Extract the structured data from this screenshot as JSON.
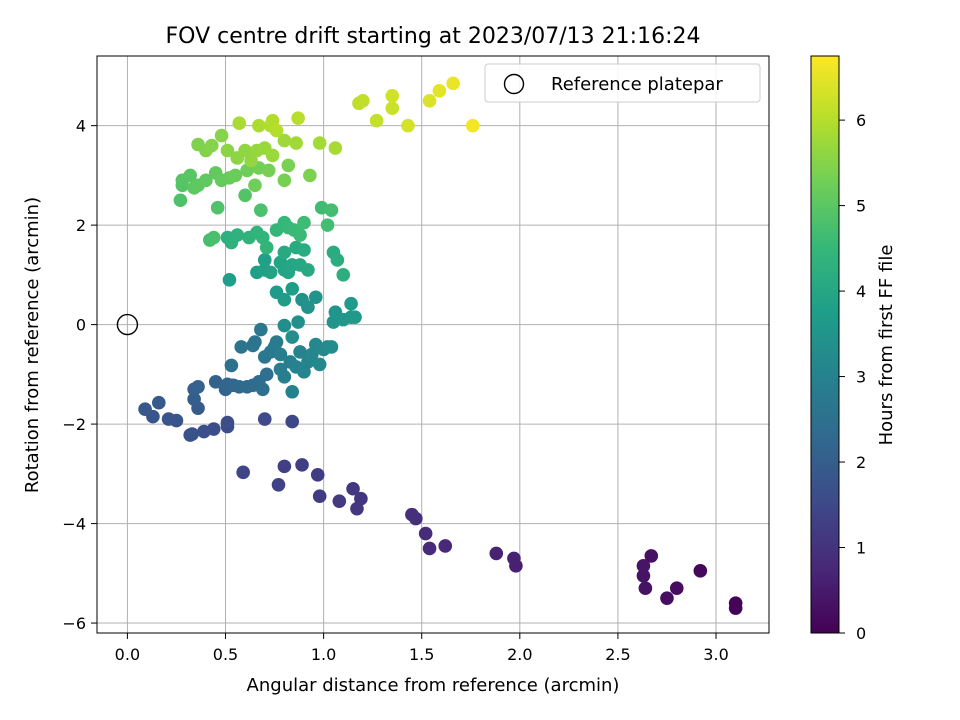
{
  "chart_data": {
    "type": "scatter",
    "title": "FOV centre drift starting at 2023/07/13 21:16:24",
    "xlabel": "Angular distance from reference (arcmin)",
    "ylabel": "Rotation from reference (arcmin)",
    "xlim": [
      -0.155,
      3.27
    ],
    "ylim": [
      -6.2,
      5.4
    ],
    "xticks": [
      0.0,
      0.5,
      1.0,
      1.5,
      2.0,
      2.5,
      3.0
    ],
    "yticks": [
      -6,
      -4,
      -2,
      0,
      2,
      4
    ],
    "xtick_labels": [
      "0.0",
      "0.5",
      "1.0",
      "1.5",
      "2.0",
      "2.5",
      "3.0"
    ],
    "ytick_labels": [
      "−6",
      "−4",
      "−2",
      "0",
      "2",
      "4"
    ],
    "grid": true,
    "legend": {
      "placement": "top-right",
      "entries": [
        "Reference platepar"
      ]
    },
    "reference_point": {
      "x": 0.0,
      "y": 0.0
    },
    "colorbar": {
      "label": "Hours from first FF file",
      "range": [
        0,
        6.75
      ],
      "ticks": [
        0,
        1,
        2,
        3,
        4,
        5,
        6
      ],
      "tick_labels": [
        "0",
        "1",
        "2",
        "3",
        "4",
        "5",
        "6"
      ],
      "colormap": "viridis",
      "colormap_stops": [
        "#440154",
        "#482878",
        "#3e4989",
        "#31688e",
        "#26828e",
        "#1f9e89",
        "#35b779",
        "#6ece58",
        "#b5de2b",
        "#fde725"
      ]
    },
    "points": [
      {
        "x": 3.1,
        "y": -5.6,
        "c": 0.05
      },
      {
        "x": 3.1,
        "y": -5.7,
        "c": 0.07
      },
      {
        "x": 2.92,
        "y": -4.95,
        "c": 0.15
      },
      {
        "x": 2.8,
        "y": -5.3,
        "c": 0.22
      },
      {
        "x": 2.75,
        "y": -5.5,
        "c": 0.25
      },
      {
        "x": 2.67,
        "y": -4.65,
        "c": 0.3
      },
      {
        "x": 2.64,
        "y": -5.3,
        "c": 0.33
      },
      {
        "x": 2.63,
        "y": -5.05,
        "c": 0.36
      },
      {
        "x": 2.63,
        "y": -4.85,
        "c": 0.38
      },
      {
        "x": 1.98,
        "y": -4.85,
        "c": 0.6
      },
      {
        "x": 1.97,
        "y": -4.7,
        "c": 0.62
      },
      {
        "x": 1.88,
        "y": -4.6,
        "c": 0.66
      },
      {
        "x": 1.62,
        "y": -4.45,
        "c": 0.78
      },
      {
        "x": 1.54,
        "y": -4.5,
        "c": 0.82
      },
      {
        "x": 1.52,
        "y": -4.2,
        "c": 0.85
      },
      {
        "x": 1.47,
        "y": -3.9,
        "c": 0.88
      },
      {
        "x": 1.45,
        "y": -3.82,
        "c": 0.9
      },
      {
        "x": 1.19,
        "y": -3.5,
        "c": 1.05
      },
      {
        "x": 1.17,
        "y": -3.7,
        "c": 1.08
      },
      {
        "x": 1.15,
        "y": -3.3,
        "c": 1.1
      },
      {
        "x": 1.08,
        "y": -3.55,
        "c": 1.13
      },
      {
        "x": 0.98,
        "y": -3.45,
        "c": 1.18
      },
      {
        "x": 0.97,
        "y": -3.02,
        "c": 1.2
      },
      {
        "x": 0.89,
        "y": -2.82,
        "c": 1.25
      },
      {
        "x": 0.8,
        "y": -2.85,
        "c": 1.3
      },
      {
        "x": 0.77,
        "y": -3.22,
        "c": 1.33
      },
      {
        "x": 0.59,
        "y": -2.97,
        "c": 1.4
      },
      {
        "x": 0.84,
        "y": -1.95,
        "c": 1.48
      },
      {
        "x": 0.7,
        "y": -1.9,
        "c": 1.52
      },
      {
        "x": 0.51,
        "y": -2.05,
        "c": 1.58
      },
      {
        "x": 0.51,
        "y": -1.97,
        "c": 1.6
      },
      {
        "x": 0.44,
        "y": -2.1,
        "c": 1.63
      },
      {
        "x": 0.39,
        "y": -2.15,
        "c": 1.66
      },
      {
        "x": 0.33,
        "y": -2.2,
        "c": 1.7
      },
      {
        "x": 0.32,
        "y": -2.22,
        "c": 1.72
      },
      {
        "x": 0.25,
        "y": -1.93,
        "c": 1.76
      },
      {
        "x": 0.21,
        "y": -1.9,
        "c": 1.78
      },
      {
        "x": 0.13,
        "y": -1.85,
        "c": 1.82
      },
      {
        "x": 0.09,
        "y": -1.7,
        "c": 1.86
      },
      {
        "x": 0.16,
        "y": -1.57,
        "c": 1.9
      },
      {
        "x": 0.36,
        "y": -1.68,
        "c": 1.95
      },
      {
        "x": 0.34,
        "y": -1.5,
        "c": 2.0
      },
      {
        "x": 0.34,
        "y": -1.3,
        "c": 2.04
      },
      {
        "x": 0.36,
        "y": -1.25,
        "c": 2.08
      },
      {
        "x": 0.45,
        "y": -1.15,
        "c": 2.12
      },
      {
        "x": 0.5,
        "y": -1.3,
        "c": 2.16
      },
      {
        "x": 0.51,
        "y": -1.2,
        "c": 2.2
      },
      {
        "x": 0.54,
        "y": -1.22,
        "c": 2.24
      },
      {
        "x": 0.57,
        "y": -1.25,
        "c": 2.28
      },
      {
        "x": 0.61,
        "y": -1.25,
        "c": 2.32
      },
      {
        "x": 0.64,
        "y": -1.22,
        "c": 2.36
      },
      {
        "x": 0.67,
        "y": -1.15,
        "c": 2.4
      },
      {
        "x": 0.69,
        "y": -1.3,
        "c": 2.44
      },
      {
        "x": 0.71,
        "y": -1.0,
        "c": 2.48
      },
      {
        "x": 0.53,
        "y": -0.82,
        "c": 2.52
      },
      {
        "x": 0.58,
        "y": -0.45,
        "c": 2.56
      },
      {
        "x": 0.64,
        "y": -0.42,
        "c": 2.6
      },
      {
        "x": 0.65,
        "y": -0.35,
        "c": 2.64
      },
      {
        "x": 0.68,
        "y": -0.1,
        "c": 2.68
      },
      {
        "x": 0.7,
        "y": -0.65,
        "c": 2.72
      },
      {
        "x": 0.73,
        "y": -0.55,
        "c": 2.75
      },
      {
        "x": 0.75,
        "y": -0.45,
        "c": 2.78
      },
      {
        "x": 0.76,
        "y": -0.35,
        "c": 2.82
      },
      {
        "x": 0.78,
        "y": -0.6,
        "c": 2.85
      },
      {
        "x": 0.78,
        "y": -0.9,
        "c": 2.88
      },
      {
        "x": 0.8,
        "y": -1.05,
        "c": 2.91
      },
      {
        "x": 0.83,
        "y": -0.75,
        "c": 2.94
      },
      {
        "x": 0.84,
        "y": -1.35,
        "c": 2.97
      },
      {
        "x": 0.86,
        "y": -0.85,
        "c": 3.0
      },
      {
        "x": 0.88,
        "y": -0.55,
        "c": 3.03
      },
      {
        "x": 0.9,
        "y": -0.95,
        "c": 3.06
      },
      {
        "x": 0.92,
        "y": -0.75,
        "c": 3.09
      },
      {
        "x": 0.94,
        "y": -0.6,
        "c": 3.12
      },
      {
        "x": 0.96,
        "y": -0.4,
        "c": 3.15
      },
      {
        "x": 0.98,
        "y": -0.8,
        "c": 3.18
      },
      {
        "x": 1.0,
        "y": -0.5,
        "c": 3.21
      },
      {
        "x": 1.02,
        "y": -0.45,
        "c": 3.24
      },
      {
        "x": 1.04,
        "y": -0.45,
        "c": 3.27
      },
      {
        "x": 0.8,
        "y": -0.02,
        "c": 3.3
      },
      {
        "x": 0.84,
        "y": -0.25,
        "c": 3.33
      },
      {
        "x": 0.87,
        "y": 0.05,
        "c": 3.36
      },
      {
        "x": 0.89,
        "y": 0.5,
        "c": 3.39
      },
      {
        "x": 0.92,
        "y": 0.35,
        "c": 3.42
      },
      {
        "x": 0.96,
        "y": 0.55,
        "c": 3.45
      },
      {
        "x": 1.05,
        "y": 0.05,
        "c": 3.48
      },
      {
        "x": 1.06,
        "y": 0.25,
        "c": 3.51
      },
      {
        "x": 1.1,
        "y": 0.1,
        "c": 3.54
      },
      {
        "x": 1.14,
        "y": 0.15,
        "c": 3.57
      },
      {
        "x": 1.16,
        "y": 0.15,
        "c": 3.6
      },
      {
        "x": 1.14,
        "y": 0.42,
        "c": 3.63
      },
      {
        "x": 0.76,
        "y": 0.65,
        "c": 3.66
      },
      {
        "x": 0.8,
        "y": 0.5,
        "c": 3.69
      },
      {
        "x": 0.84,
        "y": 0.72,
        "c": 3.72
      },
      {
        "x": 0.52,
        "y": 0.9,
        "c": 3.75
      },
      {
        "x": 0.66,
        "y": 1.05,
        "c": 3.78
      },
      {
        "x": 0.7,
        "y": 1.3,
        "c": 3.81
      },
      {
        "x": 0.7,
        "y": 1.1,
        "c": 3.84
      },
      {
        "x": 0.73,
        "y": 1.05,
        "c": 3.87
      },
      {
        "x": 0.78,
        "y": 1.25,
        "c": 3.9
      },
      {
        "x": 0.8,
        "y": 1.1,
        "c": 3.93
      },
      {
        "x": 0.82,
        "y": 1.05,
        "c": 3.96
      },
      {
        "x": 0.84,
        "y": 1.2,
        "c": 3.99
      },
      {
        "x": 0.88,
        "y": 1.2,
        "c": 4.02
      },
      {
        "x": 0.92,
        "y": 1.1,
        "c": 4.05
      },
      {
        "x": 0.8,
        "y": 1.45,
        "c": 4.08
      },
      {
        "x": 0.86,
        "y": 1.55,
        "c": 4.11
      },
      {
        "x": 0.9,
        "y": 1.5,
        "c": 4.14
      },
      {
        "x": 1.05,
        "y": 1.45,
        "c": 4.17
      },
      {
        "x": 1.07,
        "y": 1.3,
        "c": 4.2
      },
      {
        "x": 1.1,
        "y": 1.0,
        "c": 4.23
      },
      {
        "x": 0.51,
        "y": 1.75,
        "c": 4.26
      },
      {
        "x": 0.53,
        "y": 1.65,
        "c": 4.29
      },
      {
        "x": 0.56,
        "y": 1.8,
        "c": 4.32
      },
      {
        "x": 0.62,
        "y": 1.75,
        "c": 4.35
      },
      {
        "x": 0.66,
        "y": 1.85,
        "c": 4.38
      },
      {
        "x": 0.69,
        "y": 1.75,
        "c": 4.41
      },
      {
        "x": 0.71,
        "y": 1.55,
        "c": 4.44
      },
      {
        "x": 0.76,
        "y": 1.9,
        "c": 4.47
      },
      {
        "x": 0.8,
        "y": 2.05,
        "c": 4.5
      },
      {
        "x": 0.82,
        "y": 1.95,
        "c": 4.53
      },
      {
        "x": 0.85,
        "y": 1.9,
        "c": 4.56
      },
      {
        "x": 0.88,
        "y": 1.8,
        "c": 4.59
      },
      {
        "x": 0.9,
        "y": 2.05,
        "c": 4.62
      },
      {
        "x": 0.99,
        "y": 2.35,
        "c": 4.65
      },
      {
        "x": 1.02,
        "y": 2.0,
        "c": 4.68
      },
      {
        "x": 1.04,
        "y": 2.3,
        "c": 4.71
      },
      {
        "x": 0.42,
        "y": 1.7,
        "c": 4.74
      },
      {
        "x": 0.44,
        "y": 1.75,
        "c": 4.77
      },
      {
        "x": 0.68,
        "y": 2.3,
        "c": 4.8
      },
      {
        "x": 0.27,
        "y": 2.5,
        "c": 4.83
      },
      {
        "x": 0.46,
        "y": 2.35,
        "c": 4.86
      },
      {
        "x": 0.6,
        "y": 2.6,
        "c": 4.89
      },
      {
        "x": 0.28,
        "y": 2.8,
        "c": 4.92
      },
      {
        "x": 0.28,
        "y": 2.9,
        "c": 4.95
      },
      {
        "x": 0.32,
        "y": 3.0,
        "c": 4.98
      },
      {
        "x": 0.34,
        "y": 2.75,
        "c": 5.01
      },
      {
        "x": 0.36,
        "y": 2.8,
        "c": 5.04
      },
      {
        "x": 0.4,
        "y": 2.9,
        "c": 5.07
      },
      {
        "x": 0.45,
        "y": 3.05,
        "c": 5.1
      },
      {
        "x": 0.48,
        "y": 2.9,
        "c": 5.13
      },
      {
        "x": 0.52,
        "y": 2.95,
        "c": 5.16
      },
      {
        "x": 0.55,
        "y": 3.0,
        "c": 5.19
      },
      {
        "x": 0.61,
        "y": 3.1,
        "c": 5.22
      },
      {
        "x": 0.65,
        "y": 2.8,
        "c": 5.25
      },
      {
        "x": 0.67,
        "y": 3.15,
        "c": 5.28
      },
      {
        "x": 0.72,
        "y": 3.1,
        "c": 5.31
      },
      {
        "x": 0.8,
        "y": 2.9,
        "c": 5.34
      },
      {
        "x": 0.82,
        "y": 3.2,
        "c": 5.37
      },
      {
        "x": 0.93,
        "y": 3.0,
        "c": 5.4
      },
      {
        "x": 0.36,
        "y": 3.62,
        "c": 5.43
      },
      {
        "x": 0.4,
        "y": 3.5,
        "c": 5.46
      },
      {
        "x": 0.43,
        "y": 3.6,
        "c": 5.49
      },
      {
        "x": 0.48,
        "y": 3.8,
        "c": 5.52
      },
      {
        "x": 0.51,
        "y": 3.5,
        "c": 5.55
      },
      {
        "x": 0.56,
        "y": 3.35,
        "c": 5.58
      },
      {
        "x": 0.6,
        "y": 3.5,
        "c": 5.61
      },
      {
        "x": 0.63,
        "y": 3.3,
        "c": 5.64
      },
      {
        "x": 0.66,
        "y": 3.5,
        "c": 5.67
      },
      {
        "x": 0.7,
        "y": 3.55,
        "c": 5.7
      },
      {
        "x": 0.74,
        "y": 3.4,
        "c": 5.73
      },
      {
        "x": 0.8,
        "y": 3.7,
        "c": 5.76
      },
      {
        "x": 0.86,
        "y": 3.65,
        "c": 5.79
      },
      {
        "x": 0.98,
        "y": 3.65,
        "c": 5.82
      },
      {
        "x": 1.06,
        "y": 3.55,
        "c": 5.85
      },
      {
        "x": 0.57,
        "y": 4.05,
        "c": 5.88
      },
      {
        "x": 0.67,
        "y": 4.0,
        "c": 5.91
      },
      {
        "x": 0.73,
        "y": 4.0,
        "c": 5.94
      },
      {
        "x": 0.74,
        "y": 4.1,
        "c": 5.97
      },
      {
        "x": 0.76,
        "y": 3.9,
        "c": 6.0
      },
      {
        "x": 0.87,
        "y": 4.15,
        "c": 6.03
      },
      {
        "x": 1.18,
        "y": 4.45,
        "c": 6.08
      },
      {
        "x": 1.2,
        "y": 4.5,
        "c": 6.12
      },
      {
        "x": 1.27,
        "y": 4.1,
        "c": 6.17
      },
      {
        "x": 1.35,
        "y": 4.35,
        "c": 6.22
      },
      {
        "x": 1.35,
        "y": 4.6,
        "c": 6.27
      },
      {
        "x": 1.43,
        "y": 4.0,
        "c": 6.32
      },
      {
        "x": 1.54,
        "y": 4.5,
        "c": 6.4
      },
      {
        "x": 1.59,
        "y": 4.7,
        "c": 6.48
      },
      {
        "x": 1.66,
        "y": 4.85,
        "c": 6.56
      },
      {
        "x": 1.76,
        "y": 4.0,
        "c": 6.65
      }
    ]
  }
}
